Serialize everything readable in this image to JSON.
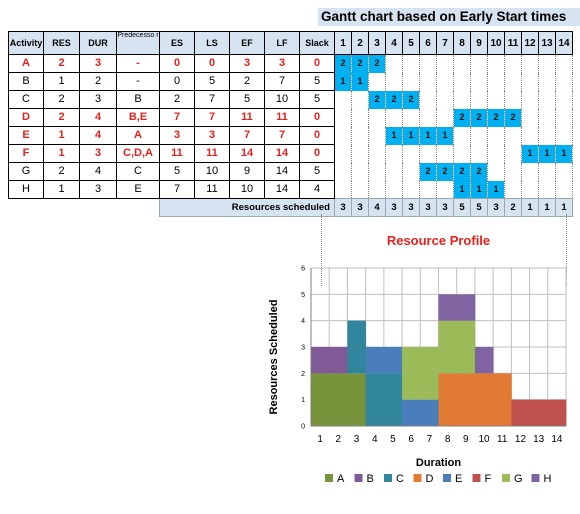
{
  "gantt": {
    "title": "Gantt chart based on Early Start times",
    "headers": [
      "Activity",
      "RES",
      "DUR",
      "Predecesso r",
      "ES",
      "LS",
      "EF",
      "LF",
      "Slack"
    ],
    "days": [
      "1",
      "2",
      "3",
      "4",
      "5",
      "6",
      "7",
      "8",
      "9",
      "10",
      "11",
      "12",
      "13",
      "14"
    ],
    "rows": [
      {
        "activity": "A",
        "res": "2",
        "dur": "3",
        "pred": "-",
        "es": "0",
        "ls": "0",
        "ef": "3",
        "lf": "3",
        "slack": "0",
        "critical": true
      },
      {
        "activity": "B",
        "res": "1",
        "dur": "2",
        "pred": "-",
        "es": "0",
        "ls": "5",
        "ef": "2",
        "lf": "7",
        "slack": "5",
        "critical": false
      },
      {
        "activity": "C",
        "res": "2",
        "dur": "3",
        "pred": "B",
        "es": "2",
        "ls": "7",
        "ef": "5",
        "lf": "10",
        "slack": "5",
        "critical": false
      },
      {
        "activity": "D",
        "res": "2",
        "dur": "4",
        "pred": "B,E",
        "es": "7",
        "ls": "7",
        "ef": "11",
        "lf": "11",
        "slack": "0",
        "critical": true
      },
      {
        "activity": "E",
        "res": "1",
        "dur": "4",
        "pred": "A",
        "es": "3",
        "ls": "3",
        "ef": "7",
        "lf": "7",
        "slack": "0",
        "critical": true
      },
      {
        "activity": "F",
        "res": "1",
        "dur": "3",
        "pred": "C,D,A",
        "es": "11",
        "ls": "11",
        "ef": "14",
        "lf": "14",
        "slack": "0",
        "critical": true
      },
      {
        "activity": "G",
        "res": "2",
        "dur": "4",
        "pred": "C",
        "es": "5",
        "ls": "10",
        "ef": "9",
        "lf": "14",
        "slack": "5",
        "critical": false
      },
      {
        "activity": "H",
        "res": "1",
        "dur": "3",
        "pred": "E",
        "es": "7",
        "ls": "11",
        "ef": "10",
        "lf": "14",
        "slack": "4",
        "critical": false
      }
    ],
    "resources_label": "Resources scheduled",
    "resources": [
      "3",
      "3",
      "4",
      "3",
      "3",
      "3",
      "3",
      "5",
      "5",
      "3",
      "2",
      "1",
      "1",
      "1"
    ]
  },
  "chart_data": {
    "type": "bar",
    "title": "Resource Profile",
    "xlabel": "Duration",
    "ylabel": "Resources Scheduled",
    "x": [
      1,
      2,
      3,
      4,
      5,
      6,
      7,
      8,
      9,
      10,
      11,
      12,
      13,
      14
    ],
    "ylim": [
      0,
      6
    ],
    "yticks": [
      0,
      1,
      2,
      3,
      4,
      5,
      6
    ],
    "stacked": true,
    "grid": true,
    "legend_position": "bottom",
    "series": [
      {
        "name": "A",
        "color": "#77933c",
        "values": [
          2,
          2,
          2,
          0,
          0,
          0,
          0,
          0,
          0,
          0,
          0,
          0,
          0,
          0
        ]
      },
      {
        "name": "B",
        "color": "#7f5a96",
        "values": [
          1,
          1,
          0,
          0,
          0,
          0,
          0,
          0,
          0,
          0,
          0,
          0,
          0,
          0
        ]
      },
      {
        "name": "C",
        "color": "#31859c",
        "values": [
          0,
          0,
          2,
          2,
          2,
          0,
          0,
          0,
          0,
          0,
          0,
          0,
          0,
          0
        ]
      },
      {
        "name": "D",
        "color": "#e17a32",
        "values": [
          0,
          0,
          0,
          0,
          0,
          0,
          0,
          2,
          2,
          2,
          2,
          0,
          0,
          0
        ]
      },
      {
        "name": "E",
        "color": "#4a7ebb",
        "values": [
          0,
          0,
          0,
          1,
          1,
          1,
          1,
          0,
          0,
          0,
          0,
          0,
          0,
          0
        ]
      },
      {
        "name": "F",
        "color": "#c0504d",
        "values": [
          0,
          0,
          0,
          0,
          0,
          0,
          0,
          0,
          0,
          0,
          0,
          1,
          1,
          1
        ]
      },
      {
        "name": "G",
        "color": "#9bbb59",
        "values": [
          0,
          0,
          0,
          0,
          0,
          2,
          2,
          2,
          2,
          0,
          0,
          0,
          0,
          0
        ]
      },
      {
        "name": "H",
        "color": "#8064a2",
        "values": [
          0,
          0,
          0,
          0,
          0,
          0,
          0,
          1,
          1,
          1,
          0,
          0,
          0,
          0
        ]
      }
    ]
  },
  "colors": {
    "critical": "#e8201c",
    "gantt_bar": "#00b0f0",
    "header_fill": "#d6e3f0",
    "title_color": "#e8201c"
  }
}
